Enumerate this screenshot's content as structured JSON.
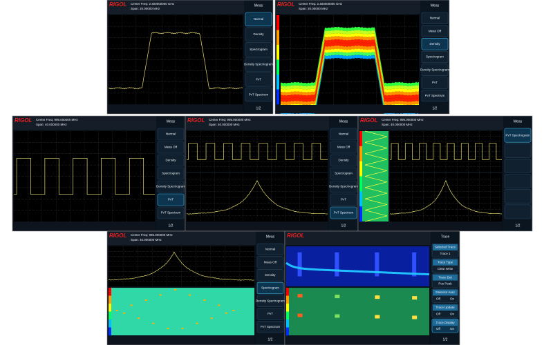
{
  "panels": [
    {
      "kind": "spectrum",
      "logo": "RIGOL",
      "center_freq": "Center Freq: 2.400000000 GHz",
      "span": "Span: 20.00000 MHz",
      "menu_title": "Meas",
      "selected": 0,
      "page": "1/2",
      "menu": [
        {
          "label": "Normal"
        },
        {
          "label": "Density"
        },
        {
          "label": "Spectrogram"
        },
        {
          "label": "Density Spectrogram"
        },
        {
          "label": "PvT"
        },
        {
          "label": "PvT Spectrum"
        }
      ]
    },
    {
      "kind": "density",
      "logo": "RIGOL",
      "center_freq": "Center Freq: 2.400000000 GHz",
      "span": "Span: 20.00000 MHz",
      "menu_title": "Meas",
      "selected": 2,
      "page": "1/2",
      "menu": [
        {
          "label": "Normal"
        },
        {
          "label": "Meas Off"
        },
        {
          "label": "Density"
        },
        {
          "label": "Spectrogram"
        },
        {
          "label": "Density Spectrogram"
        },
        {
          "label": "PvT"
        },
        {
          "label": "PvT Spectrum"
        }
      ]
    },
    {
      "kind": "pvt",
      "logo": "RIGOL",
      "center_freq": "Center Freq: 995.000000 MHz",
      "span": "Span: 40.000000 MHz",
      "menu_title": "Meas",
      "selected": 5,
      "page": "1/2",
      "menu": [
        {
          "label": "Normal"
        },
        {
          "label": "Meas Off"
        },
        {
          "label": "Density"
        },
        {
          "label": "Spectrogram"
        },
        {
          "label": "Density Spectrogram"
        },
        {
          "label": "PvT"
        },
        {
          "label": "PvT Spectrum"
        }
      ]
    },
    {
      "kind": "pvt_spectrum",
      "logo": "RIGOL",
      "center_freq": "Center Freq: 995.000000 MHz",
      "span": "Span: 40.000000 MHz",
      "menu_title": "Meas",
      "selected": 6,
      "page": "1/2",
      "menu": [
        {
          "label": "Normal"
        },
        {
          "label": "Meas Off"
        },
        {
          "label": "Density"
        },
        {
          "label": "Spectrogram"
        },
        {
          "label": "Density Spectrogram"
        },
        {
          "label": "PvT"
        },
        {
          "label": "PvT Spectrum"
        }
      ]
    },
    {
      "kind": "pvt_spectrogram",
      "logo": "RIGOL",
      "center_freq": "Center Freq: 995.000000 MHz",
      "span": "Span: 40.000000 MHz",
      "menu_title": "Meas",
      "selected": 0,
      "page": "1/2",
      "menu": [
        {
          "label": "PvT Spectrogram"
        }
      ]
    },
    {
      "kind": "spectrogram",
      "logo": "RIGOL",
      "center_freq": "Center Freq: 995.000000 MHz",
      "span": "Span: 40.000000 MHz",
      "menu_title": "Meas",
      "selected": 3,
      "page": "1/2",
      "menu": [
        {
          "label": "Normal"
        },
        {
          "label": "Meas Off"
        },
        {
          "label": "Density"
        },
        {
          "label": "Spectrogram"
        },
        {
          "label": "Density Spectrogram"
        },
        {
          "label": "PvT"
        },
        {
          "label": "PvT Spectrum"
        }
      ]
    },
    {
      "kind": "trace",
      "logo": "RIGOL",
      "menu_title": "Trace",
      "selected": 5,
      "page": "1/2",
      "menu": [
        {
          "sub": "Selected Trace",
          "label": "Trace 1"
        },
        {
          "sub": "Trace Type",
          "label": "Clear Write"
        },
        {
          "sub": "Trace Det",
          "label": "Pos Peak"
        },
        {
          "sub": "Detector Auto",
          "label": "Off",
          "label2": "On"
        },
        {
          "sub": "Trace Update",
          "label": "Off",
          "label2": "On"
        },
        {
          "sub": "Trace Display",
          "label": "Off",
          "label2": "On"
        }
      ]
    }
  ]
}
